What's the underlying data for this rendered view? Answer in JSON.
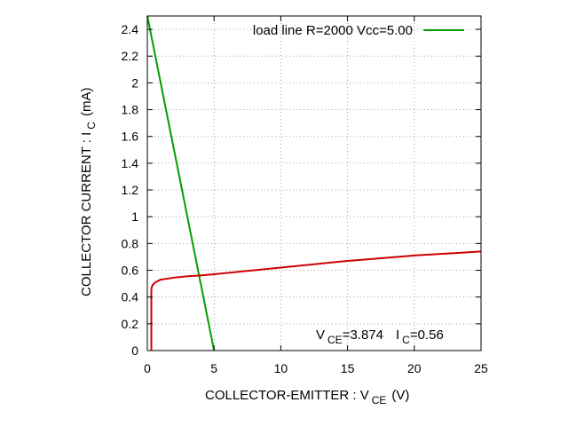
{
  "chart_data": {
    "type": "line",
    "xlabel": {
      "main": "COLLECTOR-EMITTER : V",
      "sub": "CE",
      "unit": "(V)"
    },
    "ylabel": {
      "main": "COLLECTOR CURRENT : I",
      "sub": "C",
      "unit": "(mA)"
    },
    "xlim": [
      0,
      25
    ],
    "ylim": [
      0,
      2.5
    ],
    "x_ticks": [
      "0",
      "5",
      "10",
      "15",
      "20",
      "25"
    ],
    "y_ticks": [
      "0",
      "0.2",
      "0.4",
      "0.6",
      "0.8",
      "1",
      "1.2",
      "1.4",
      "1.6",
      "1.8",
      "2",
      "2.2",
      "2.4"
    ],
    "grid": true,
    "legend_position": "top-right",
    "series": [
      {
        "name": "load line R=2000 Vcc=5.00",
        "color": "#00a000",
        "x": [
          0,
          5
        ],
        "y": [
          2.5,
          0
        ]
      },
      {
        "color": "#cc0000",
        "x": [
          0.3,
          0.3,
          0.32,
          0.4,
          0.6,
          1,
          2,
          3,
          3.874,
          5,
          7,
          10,
          12.5,
          15,
          17.5,
          20,
          22.5,
          25
        ],
        "y": [
          0,
          0.44,
          0.47,
          0.49,
          0.51,
          0.53,
          0.545,
          0.555,
          0.56,
          0.57,
          0.59,
          0.62,
          0.645,
          0.67,
          0.69,
          0.71,
          0.725,
          0.74
        ]
      }
    ],
    "annotation": {
      "vce_prefix": "V",
      "vce_sub": "CE",
      "vce_value": "=3.874",
      "ic_prefix": "I",
      "ic_sub": "C",
      "ic_value": "=0.56"
    }
  }
}
